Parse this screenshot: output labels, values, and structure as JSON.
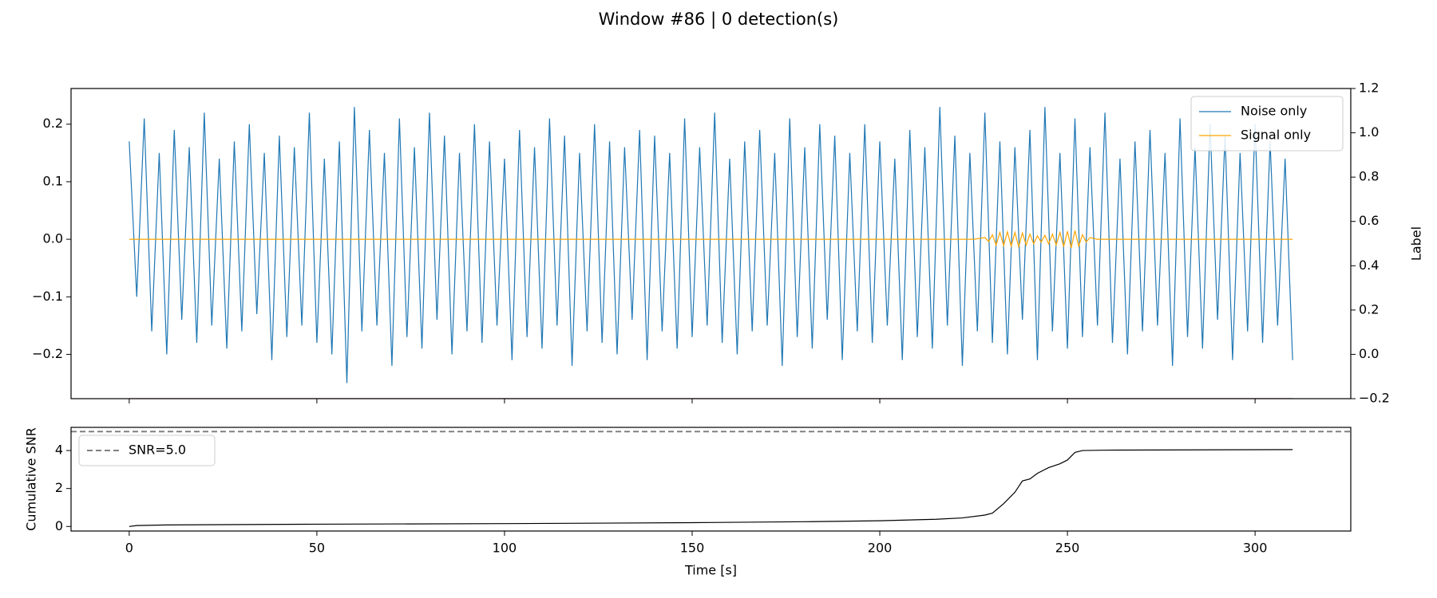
{
  "title": "Window #86 | 0 detection(s)",
  "chart_data": [
    {
      "type": "line",
      "xlim": [
        -15.5,
        325.5
      ],
      "xticks": [
        0,
        50,
        100,
        150,
        200,
        250,
        300
      ],
      "ylim": [
        -0.277,
        0.262
      ],
      "yticks": [
        {
          "value": -0.2,
          "label": "−0.2"
        },
        {
          "value": -0.1,
          "label": "−0.1"
        },
        {
          "value": 0,
          "label": "0.0"
        },
        0.1,
        0.2
      ],
      "y2lim": [
        -0.2,
        1.2
      ],
      "y2ticks": [
        {
          "value": -0.2,
          "label": "−0.2"
        },
        {
          "value": 0,
          "label": "0.0"
        },
        0.2,
        0.4,
        0.6,
        0.8,
        {
          "value": 1,
          "label": "1.0"
        },
        1.2
      ],
      "y2_label": "Label",
      "legend": "upper right",
      "series": [
        {
          "name": "Noise only",
          "color": "#1f77b4",
          "x": [
            0,
            2,
            4,
            6,
            8,
            10,
            12,
            14,
            16,
            18,
            20,
            22,
            24,
            26,
            28,
            30,
            32,
            34,
            36,
            38,
            40,
            42,
            44,
            46,
            48,
            50,
            52,
            54,
            56,
            58,
            60,
            62,
            64,
            66,
            68,
            70,
            72,
            74,
            76,
            78,
            80,
            82,
            84,
            86,
            88,
            90,
            92,
            94,
            96,
            98,
            100,
            102,
            104,
            106,
            108,
            110,
            112,
            114,
            116,
            118,
            120,
            122,
            124,
            126,
            128,
            130,
            132,
            134,
            136,
            138,
            140,
            142,
            144,
            146,
            148,
            150,
            152,
            154,
            156,
            158,
            160,
            162,
            164,
            166,
            168,
            170,
            172,
            174,
            176,
            178,
            180,
            182,
            184,
            186,
            188,
            190,
            192,
            194,
            196,
            198,
            200,
            202,
            204,
            206,
            208,
            210,
            212,
            214,
            216,
            218,
            220,
            222,
            224,
            226,
            228,
            230,
            232,
            234,
            236,
            238,
            240,
            242,
            244,
            246,
            248,
            250,
            252,
            254,
            256,
            258,
            260,
            262,
            264,
            266,
            268,
            270,
            272,
            274,
            276,
            278,
            280,
            282,
            284,
            286,
            288,
            290,
            292,
            294,
            296,
            298,
            300,
            302,
            304,
            306,
            308,
            310
          ],
          "values": [
            0.17,
            -0.1,
            0.21,
            -0.16,
            0.15,
            -0.2,
            0.19,
            -0.14,
            0.16,
            -0.18,
            0.22,
            -0.15,
            0.14,
            -0.19,
            0.17,
            -0.16,
            0.2,
            -0.13,
            0.15,
            -0.21,
            0.18,
            -0.17,
            0.16,
            -0.15,
            0.22,
            -0.18,
            0.14,
            -0.2,
            0.17,
            -0.25,
            0.23,
            -0.16,
            0.19,
            -0.15,
            0.15,
            -0.22,
            0.21,
            -0.17,
            0.16,
            -0.19,
            0.22,
            -0.14,
            0.18,
            -0.2,
            0.15,
            -0.16,
            0.2,
            -0.18,
            0.17,
            -0.15,
            0.14,
            -0.21,
            0.19,
            -0.17,
            0.16,
            -0.19,
            0.21,
            -0.15,
            0.18,
            -0.22,
            0.15,
            -0.16,
            0.2,
            -0.18,
            0.17,
            -0.2,
            0.16,
            -0.14,
            0.19,
            -0.21,
            0.18,
            -0.16,
            0.15,
            -0.19,
            0.21,
            -0.17,
            0.16,
            -0.15,
            0.22,
            -0.18,
            0.14,
            -0.2,
            0.17,
            -0.16,
            0.19,
            -0.15,
            0.15,
            -0.22,
            0.21,
            -0.17,
            0.16,
            -0.19,
            0.2,
            -0.14,
            0.18,
            -0.21,
            0.15,
            -0.16,
            0.2,
            -0.18,
            0.17,
            -0.15,
            0.14,
            -0.21,
            0.19,
            -0.17,
            0.16,
            -0.19,
            0.23,
            -0.15,
            0.18,
            -0.22,
            0.15,
            -0.16,
            0.22,
            -0.18,
            0.17,
            -0.2,
            0.16,
            -0.14,
            0.19,
            -0.21,
            0.23,
            -0.16,
            0.15,
            -0.19,
            0.21,
            -0.17,
            0.16,
            -0.15,
            0.22,
            -0.18,
            0.14,
            -0.2,
            0.17,
            -0.16,
            0.19,
            -0.15,
            0.15,
            -0.22,
            0.21,
            -0.17,
            0.16,
            -0.19,
            0.2,
            -0.14,
            0.18,
            -0.21,
            0.15,
            -0.16,
            0.2,
            -0.18,
            0.17,
            -0.15,
            0.14,
            -0.21
          ]
        },
        {
          "name": "Signal only",
          "color": "#ffa500",
          "x": [
            0,
            225,
            228,
            229,
            230,
            231,
            232,
            233,
            234,
            235,
            236,
            237,
            238,
            239,
            240,
            241,
            242,
            243,
            244,
            245,
            246,
            247,
            248,
            249,
            250,
            251,
            252,
            253,
            254,
            255,
            256,
            258,
            310
          ],
          "values": [
            0,
            0,
            0.003,
            -0.004,
            0.008,
            -0.01,
            0.012,
            -0.011,
            0.013,
            -0.012,
            0.012,
            -0.013,
            0.011,
            -0.01,
            0.009,
            -0.008,
            0.006,
            -0.005,
            0.007,
            -0.008,
            0.009,
            -0.01,
            0.012,
            -0.013,
            0.014,
            -0.015,
            0.015,
            -0.012,
            0.008,
            -0.005,
            0.003,
            0,
            0
          ]
        },
        {
          "axis": "y2",
          "color": "#8b0000",
          "x": [
            0,
            310
          ],
          "values": [
            -0.2,
            -0.2
          ]
        }
      ]
    },
    {
      "type": "line",
      "xlim": [
        -15.5,
        325.5
      ],
      "xticks": [
        0,
        50,
        100,
        150,
        200,
        250,
        300
      ],
      "x_label": "Time [s]",
      "ylim": [
        -0.24,
        5.22
      ],
      "yticks": [
        0,
        2,
        4
      ],
      "y_label": "Cumulative SNR",
      "legend": "upper left",
      "threshold": {
        "name": "SNR=5.0",
        "value": 5.0,
        "color": "#808080"
      },
      "series": [
        {
          "color": "#000000",
          "x": [
            0,
            2,
            10,
            50,
            100,
            150,
            180,
            200,
            215,
            222,
            228,
            230,
            233,
            236,
            238,
            240,
            242,
            245,
            248,
            250,
            252,
            254,
            260,
            310
          ],
          "values": [
            0,
            0.05,
            0.08,
            0.12,
            0.15,
            0.2,
            0.25,
            0.3,
            0.38,
            0.45,
            0.6,
            0.7,
            1.2,
            1.8,
            2.4,
            2.5,
            2.8,
            3.1,
            3.3,
            3.5,
            3.9,
            4.0,
            4.02,
            4.05
          ]
        }
      ]
    }
  ]
}
